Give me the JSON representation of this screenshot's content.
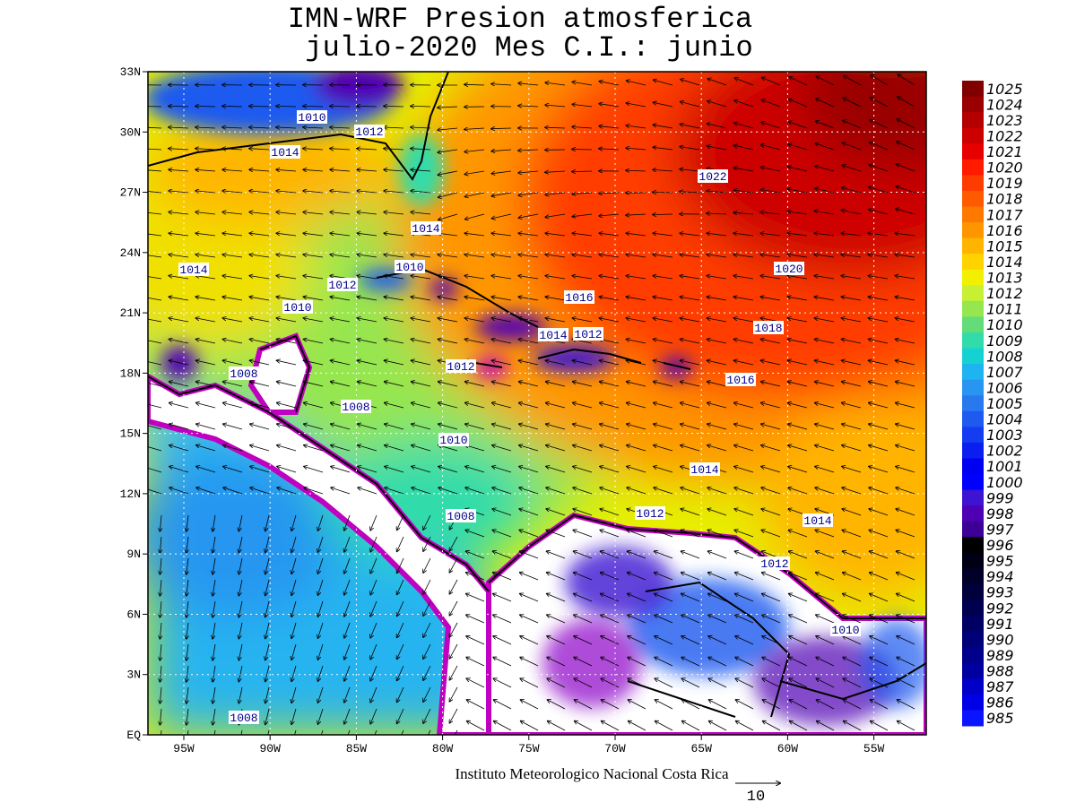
{
  "title": {
    "line1": "IMN-WRF  Presion atmosferica",
    "line2": "julio-2020 Mes C.I.: junio"
  },
  "map": {
    "lon_ticks": [
      "95W",
      "90W",
      "85W",
      "80W",
      "75W",
      "70W",
      "65W",
      "60W",
      "55W"
    ],
    "lat_ticks": [
      "33N",
      "30N",
      "27N",
      "24N",
      "21N",
      "18N",
      "15N",
      "12N",
      "9N",
      "6N",
      "3N",
      "EQ"
    ],
    "contour_labels": [
      1022,
      1020,
      1018,
      1016,
      1016,
      1014,
      1014,
      1014,
      1012,
      1010,
      1012,
      1010,
      1010,
      1008,
      1008,
      1010,
      1012,
      1014,
      1012,
      1014,
      1012,
      1008,
      1014,
      1012,
      1010,
      1008
    ]
  },
  "colorbar": {
    "levels": [
      1025,
      1024,
      1023,
      1022,
      1021,
      1020,
      1019,
      1018,
      1017,
      1016,
      1015,
      1014,
      1013,
      1012,
      1011,
      1010,
      1009,
      1008,
      1007,
      1006,
      1005,
      1004,
      1003,
      1002,
      1001,
      1000,
      999,
      998,
      997,
      996,
      995,
      994,
      993,
      992,
      991,
      990,
      989,
      988,
      987,
      986,
      985
    ],
    "colors": [
      "#800000",
      "#9a0000",
      "#b40000",
      "#cd0000",
      "#e60000",
      "#ff1a00",
      "#ff3c00",
      "#ff5a00",
      "#ff7800",
      "#ff9600",
      "#ffb400",
      "#ffd200",
      "#f0f000",
      "#c8f032",
      "#96e650",
      "#64dc78",
      "#32dcaa",
      "#14d2d2",
      "#1eb4f0",
      "#2896f0",
      "#2878f0",
      "#1e5af0",
      "#143cf0",
      "#0a1ef0",
      "#0000f0",
      "#0000ff",
      "#3c14d2",
      "#5000b4",
      "#3c0096",
      "#000000",
      "#000014",
      "#000028",
      "#00003c",
      "#000050",
      "#000064",
      "#000078",
      "#00008c",
      "#0000a0",
      "#0000c8",
      "#0000e6",
      "#0a14ff"
    ]
  },
  "footer": "Instituto Meteorologico Nacional Costa Rica",
  "vector_scale": "10"
}
